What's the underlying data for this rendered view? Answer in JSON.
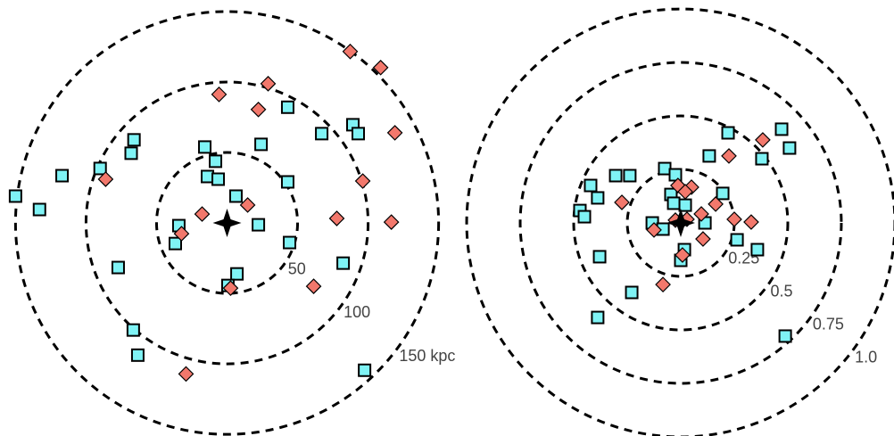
{
  "chart_data": [
    {
      "type": "scatter",
      "xlim": [
        -161,
        161
      ],
      "ylim": [
        -151,
        158
      ],
      "rticks": [
        50,
        100,
        {
          "value": 150,
          "label": "150 kpc"
        }
      ],
      "series": [
        {
          "color": "#7ff3f5",
          "marker": "square",
          "x": [
            -150,
            -133,
            -117,
            -90,
            -68,
            -66,
            -15.8,
            -8.2,
            -13.9,
            -6.3,
            6.3,
            43,
            24.1,
            43,
            67.1,
            89.2,
            93,
            -34.2,
            -36.7,
            22.2,
            44.3,
            -77.2,
            7,
            0.6,
            82.3,
            -66.5,
            -63.3,
            97.5
          ],
          "values": [
            19,
            9.5,
            33.5,
            38.6,
            49.4,
            58.9,
            53.8,
            43.7,
            32.9,
            31,
            19,
            82,
            55.7,
            29.1,
            63.3,
            69.6,
            63.3,
            -1.9,
            -14.6,
            -1.3,
            -13.9,
            -31.6,
            -36.1,
            -44.3,
            -28.5,
            -75.9,
            -93.7,
            -104.4
          ]
        },
        {
          "color": "#f2786c",
          "marker": "diamond",
          "x": [
            87.3,
            108.9,
            -5.7,
            29.1,
            22.2,
            119,
            -86.1,
            96.2,
            14.6,
            -17.7,
            -32.3,
            77.8,
            116.5,
            2.5,
            61.4,
            -29.1
          ],
          "values": [
            121.5,
            110.1,
            91.1,
            98.7,
            80.4,
            63.9,
            31,
            29.7,
            12.7,
            6.3,
            -7.6,
            3.2,
            0.6,
            -46.2,
            -44.9,
            -107
          ]
        }
      ]
    },
    {
      "type": "scatter",
      "xlim": [
        -1.046,
        0.996
      ],
      "ylim": [
        -0.996,
        1.042
      ],
      "rticks": [
        0.25,
        0.5,
        0.75,
        {
          "value": 1.0,
          "label": "1.0"
        }
      ],
      "series": [
        {
          "color": "#7ff3f5",
          "marker": "square",
          "x": [
            -0.471,
            -0.45,
            -0.421,
            -0.388,
            -0.304,
            -0.238,
            -0.075,
            -0.025,
            -0.046,
            -0.033,
            0.021,
            0.196,
            0.133,
            0.221,
            0.379,
            0.471,
            0.508,
            -0.133,
            -0.083,
            0.113,
            0.263,
            0.358,
            -0.379,
            -0.229,
            0,
            0.017,
            -0.388,
            0.488
          ],
          "values": [
            0.058,
            0.029,
            0.175,
            0.117,
            0.221,
            0.221,
            0.254,
            0.225,
            0.133,
            0.092,
            0.083,
            0.138,
            0.313,
            0.421,
            0.3,
            0.438,
            0.35,
            0,
            -0.029,
            0,
            -0.079,
            -0.125,
            -0.158,
            -0.325,
            -0.175,
            -0.125,
            -0.442,
            -0.529
          ]
        },
        {
          "color": "#f2786c",
          "marker": "diamond",
          "x": [
            0.383,
            0.225,
            -0.013,
            0.05,
            0.021,
            -0.275,
            0.163,
            0.096,
            0.25,
            0.329,
            -0.025,
            -0.125,
            0.104,
            0.008,
            -0.083,
            0.029
          ],
          "values": [
            0.388,
            0.313,
            0.175,
            0.167,
            0.146,
            0.096,
            0.088,
            0.042,
            0.017,
            0.004,
            0.013,
            -0.033,
            -0.075,
            -0.15,
            -0.288,
            0.017
          ]
        }
      ]
    }
  ]
}
